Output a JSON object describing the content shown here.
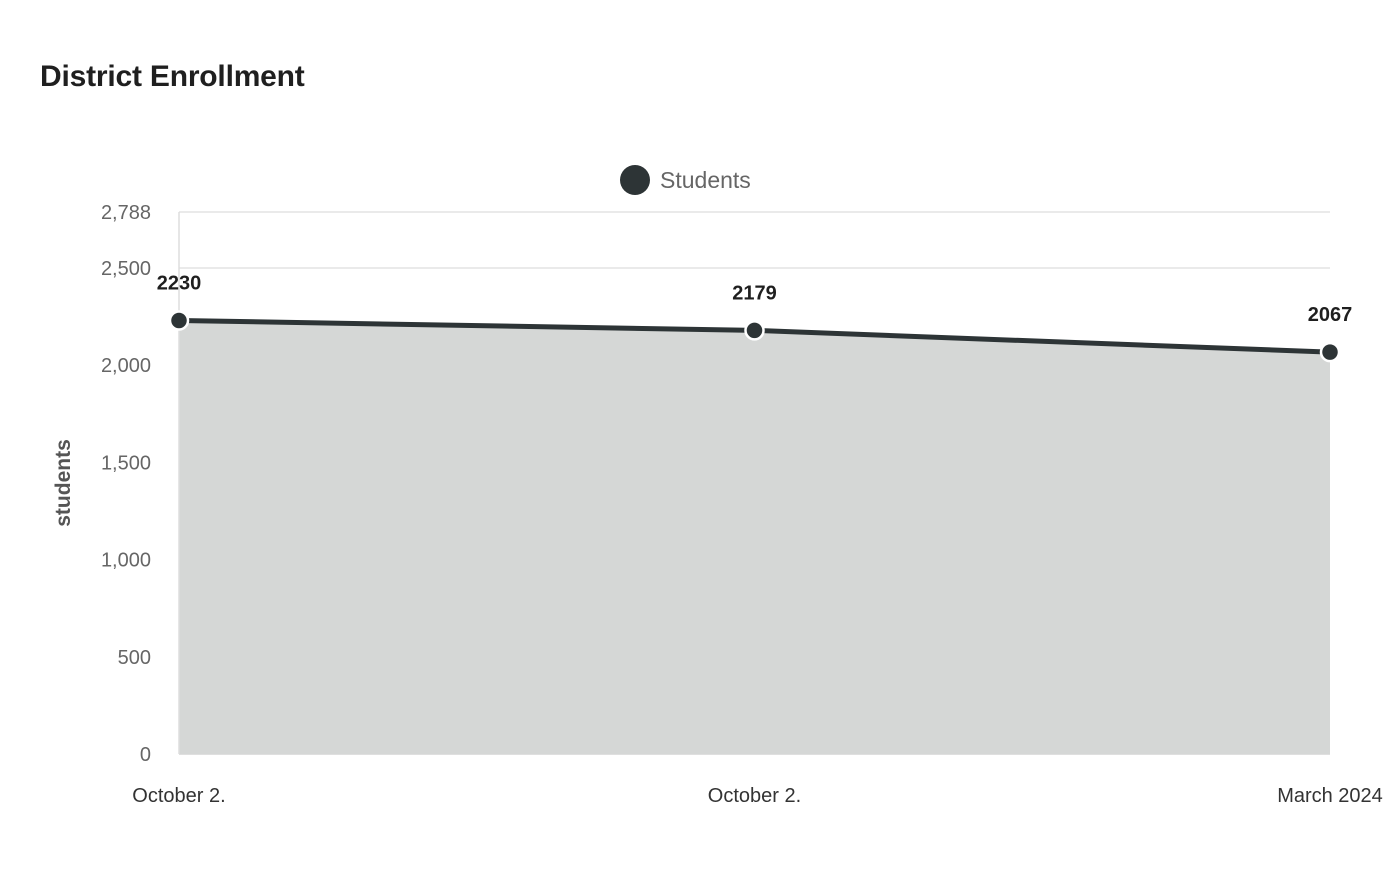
{
  "chart_data": {
    "type": "area",
    "title": "District Enrollment",
    "ylabel": "students",
    "xlabel": "",
    "categories": [
      "October 2.",
      "October 2.",
      "March 2024"
    ],
    "series": [
      {
        "name": "Students",
        "values": [
          2230,
          2179,
          2067
        ]
      }
    ],
    "ylim": [
      0,
      2788
    ],
    "yticks": [
      0,
      500,
      1000,
      1500,
      2000,
      2500,
      2788
    ],
    "ytick_labels": [
      "0",
      "500",
      "1,000",
      "1,500",
      "2,000",
      "2,500",
      "2,788"
    ],
    "grid": true,
    "legend": "top-center",
    "colors": {
      "line": "#2d3436",
      "fill": "#d5d7d6",
      "grid": "#dddddd"
    }
  }
}
